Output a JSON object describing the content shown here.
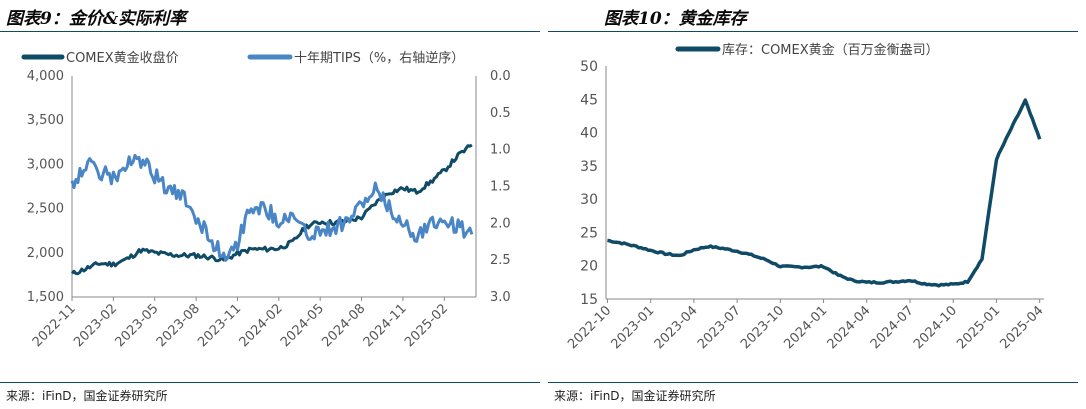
{
  "chart_data": [
    {
      "type": "line",
      "title": "图表9：金价&实际利率",
      "source": "来源：iFinD，国金证券研究所",
      "x_ticks": [
        "2022-11",
        "2023-02",
        "2023-05",
        "2023-08",
        "2023-11",
        "2024-02",
        "2024-05",
        "2024-08",
        "2024-11",
        "2025-02"
      ],
      "y_left": {
        "lim": [
          1500,
          4000
        ],
        "ticks": [
          "4,000",
          "3,500",
          "3,000",
          "2,500",
          "2,000",
          "1,500"
        ],
        "tick_values": [
          4000,
          3500,
          3000,
          2500,
          2000,
          1500
        ]
      },
      "y_right": {
        "lim": [
          0.0,
          3.0
        ],
        "inverted": true,
        "ticks": [
          "0.0",
          "0.5",
          "1.0",
          "1.5",
          "2.0",
          "2.5",
          "3.0"
        ],
        "tick_values": [
          0,
          0.5,
          1.0,
          1.5,
          2.0,
          2.5,
          3.0
        ]
      },
      "series": [
        {
          "name": "COMEX黄金收盘价",
          "axis": "left",
          "color": "#0f4a66",
          "x": [
            "2022-11",
            "2022-12",
            "2023-01",
            "2023-02",
            "2023-03",
            "2023-04",
            "2023-05",
            "2023-06",
            "2023-07",
            "2023-08",
            "2023-09",
            "2023-10",
            "2023-11",
            "2023-12",
            "2024-01",
            "2024-02",
            "2024-03",
            "2024-04",
            "2024-05",
            "2024-06",
            "2024-07",
            "2024-08",
            "2024-09",
            "2024-10",
            "2024-11",
            "2024-12",
            "2025-01",
            "2025-02",
            "2025-03",
            "2025-04"
          ],
          "values": [
            1760,
            1820,
            1880,
            1870,
            1930,
            2030,
            2000,
            1980,
            1970,
            1970,
            1950,
            1920,
            1990,
            2040,
            2040,
            2050,
            2120,
            2300,
            2350,
            2340,
            2360,
            2400,
            2560,
            2680,
            2730,
            2690,
            2800,
            2930,
            3100,
            3220
          ]
        },
        {
          "name": "十年期TIPS（%，右轴逆序）",
          "axis": "right",
          "color": "#4a86c5",
          "x": [
            "2022-11",
            "2022-12",
            "2023-01",
            "2023-02",
            "2023-03",
            "2023-04",
            "2023-05",
            "2023-06",
            "2023-07",
            "2023-08",
            "2023-09",
            "2023-10",
            "2023-11",
            "2023-12",
            "2024-01",
            "2024-02",
            "2024-03",
            "2024-04",
            "2024-05",
            "2024-06",
            "2024-07",
            "2024-08",
            "2024-09",
            "2024-10",
            "2024-11",
            "2024-12",
            "2025-01",
            "2025-02",
            "2025-03",
            "2025-04"
          ],
          "values": [
            1.45,
            1.2,
            1.3,
            1.4,
            1.2,
            1.15,
            1.35,
            1.55,
            1.65,
            1.9,
            2.2,
            2.45,
            2.25,
            1.75,
            1.8,
            1.95,
            1.9,
            2.15,
            2.1,
            2.05,
            1.95,
            1.75,
            1.55,
            1.8,
            2.0,
            2.15,
            2.0,
            1.95,
            2.05,
            2.15
          ]
        }
      ]
    },
    {
      "type": "line",
      "title": "图表10：黄金库存",
      "source": "来源：iFinD，国金证券研究所",
      "x_ticks": [
        "2022-10",
        "2023-01",
        "2023-04",
        "2023-07",
        "2023-10",
        "2024-01",
        "2024-04",
        "2024-07",
        "2024-10",
        "2025-01",
        "2025-04"
      ],
      "y": {
        "lim": [
          15,
          50
        ],
        "ticks": [
          "50",
          "45",
          "40",
          "35",
          "30",
          "25",
          "20",
          "15"
        ],
        "tick_values": [
          50,
          45,
          40,
          35,
          30,
          25,
          20,
          15
        ]
      },
      "series": [
        {
          "name": "库存：COMEX黄金（百万金衡盎司）",
          "color": "#0f4a66",
          "x": [
            "2022-10",
            "2022-11",
            "2022-12",
            "2023-01",
            "2023-02",
            "2023-03",
            "2023-04",
            "2023-05",
            "2023-06",
            "2023-07",
            "2023-08",
            "2023-09",
            "2023-10",
            "2023-11",
            "2023-12",
            "2024-01",
            "2024-02",
            "2024-03",
            "2024-04",
            "2024-05",
            "2024-06",
            "2024-07",
            "2024-08",
            "2024-09",
            "2024-10",
            "2024-11",
            "2024-12",
            "2025-01",
            "2025-02",
            "2025-03",
            "2025-04"
          ],
          "values": [
            23.8,
            23.4,
            22.9,
            22.3,
            21.8,
            21.5,
            22.4,
            22.9,
            22.6,
            22.2,
            21.6,
            20.9,
            19.9,
            19.8,
            19.8,
            19.9,
            18.6,
            17.8,
            17.5,
            17.5,
            17.6,
            17.8,
            17.3,
            17.1,
            17.2,
            17.6,
            21.0,
            36.0,
            40.5,
            44.8,
            39.0
          ]
        }
      ]
    }
  ]
}
